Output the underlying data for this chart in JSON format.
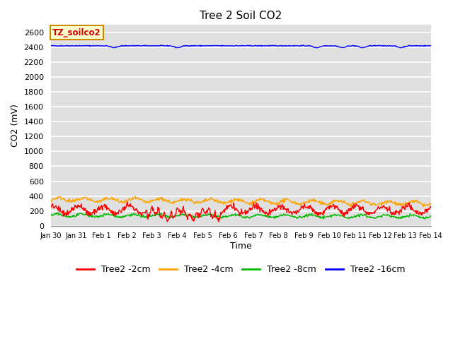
{
  "title": "Tree 2 Soil CO2",
  "ylabel": "CO2 (mV)",
  "xlabel": "Time",
  "annotation": "TZ_soilco2",
  "annotation_facecolor": "#ffffcc",
  "annotation_edgecolor": "#cc8800",
  "annotation_textcolor": "#cc0000",
  "ylim": [
    0,
    2700
  ],
  "yticks": [
    0,
    200,
    400,
    600,
    800,
    1000,
    1200,
    1400,
    1600,
    1800,
    2000,
    2200,
    2400,
    2600
  ],
  "plot_bg": "#e0e0e0",
  "fig_bg": "#ffffff",
  "grid_color": "#ffffff",
  "title_fontsize": 11,
  "axis_fontsize": 9,
  "tick_fontsize": 8,
  "legend_fontsize": 9,
  "colors": {
    "Tree2 -2cm": "#ff0000",
    "Tree2 -4cm": "#ffa500",
    "Tree2 -8cm": "#00bb00",
    "Tree2 -16cm": "#0000ff"
  },
  "xtick_labels": [
    "Jan 30",
    "Jan 31",
    "Feb 1",
    "Feb 2",
    "Feb 3",
    "Feb 4",
    "Feb 5",
    "Feb 6",
    "Feb 7",
    "Feb 8",
    "Feb 9",
    "Feb 10",
    "Feb 11",
    "Feb 12",
    "Feb 13",
    "Feb 14"
  ]
}
